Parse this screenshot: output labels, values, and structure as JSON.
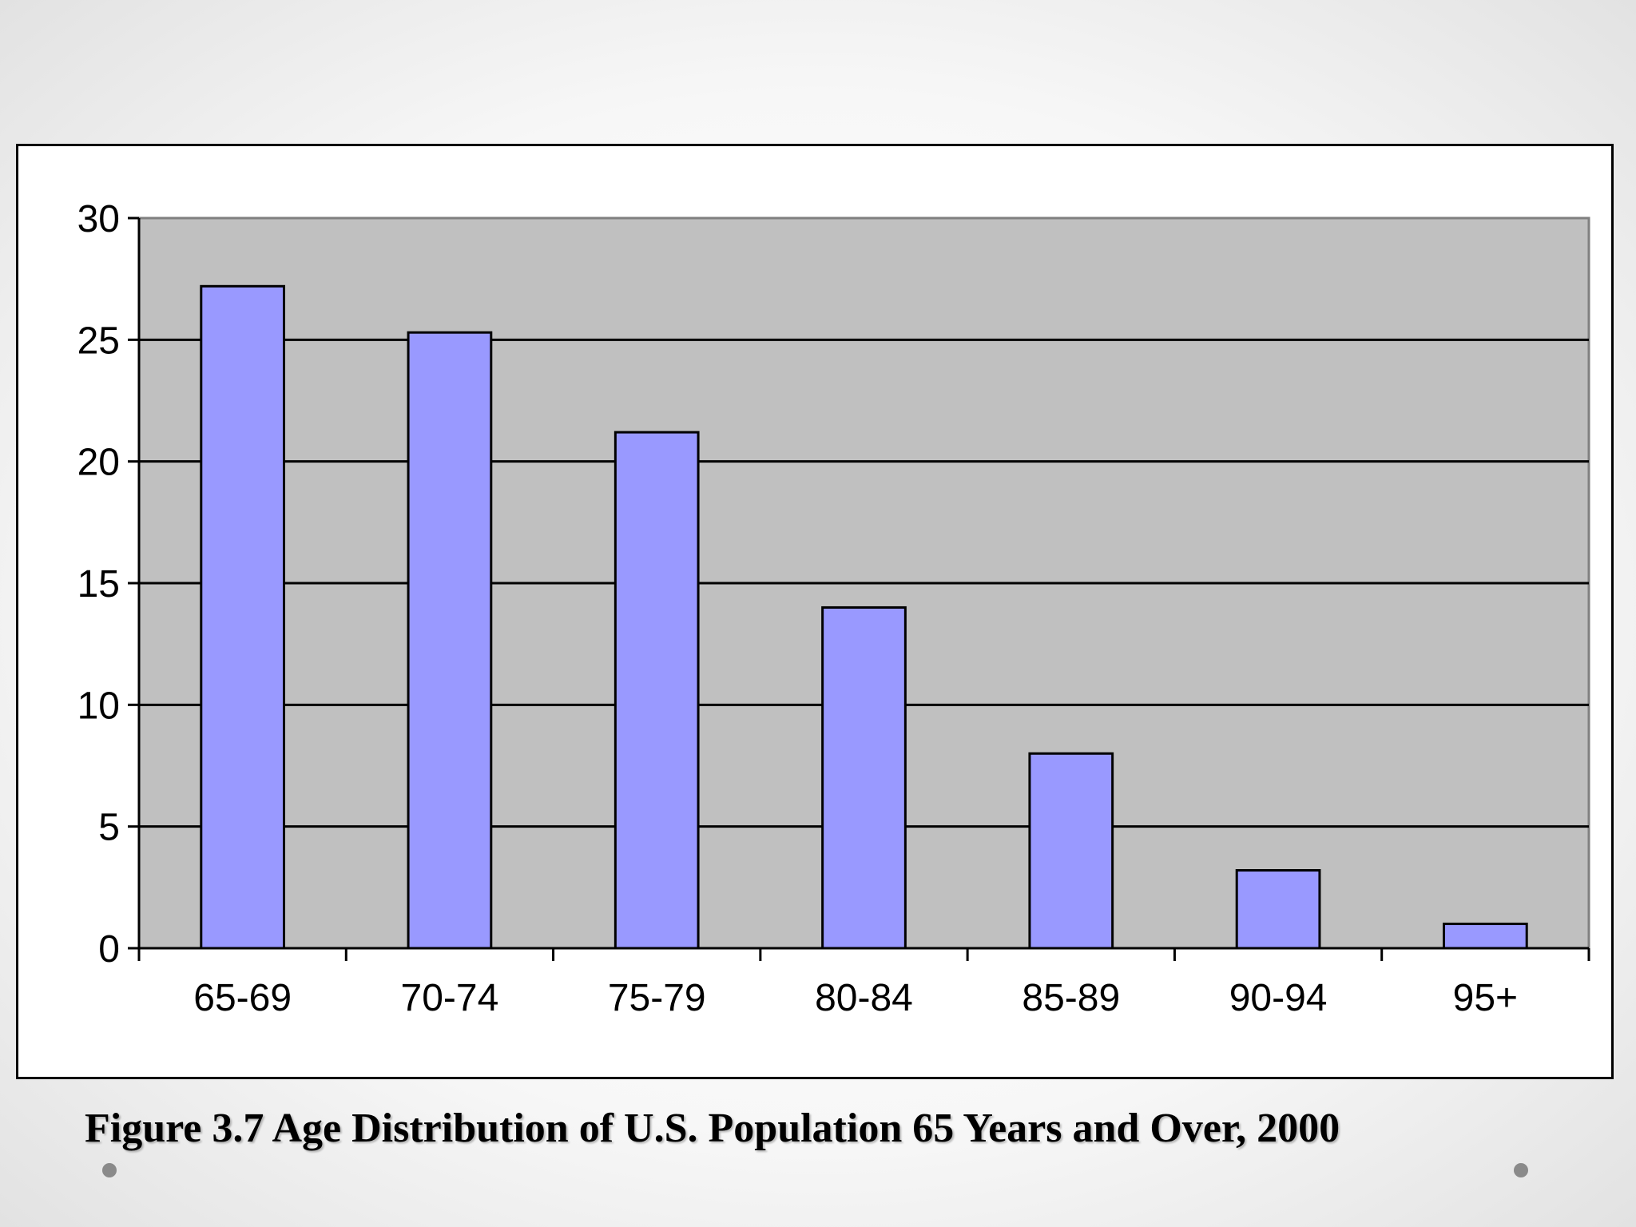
{
  "caption": "Figure 3.7 Age Distribution of U.S. Population 65 Years and Over, 2000",
  "colors": {
    "bar_fill": "#9999ff",
    "plot_background": "#c0c0c0",
    "gridline": "#000000",
    "slide_dot": "#8a8a8a"
  },
  "chart_data": {
    "type": "bar",
    "categories": [
      "65-69",
      "70-74",
      "75-79",
      "80-84",
      "85-89",
      "90-94",
      "95+"
    ],
    "values": [
      27.2,
      25.3,
      21.2,
      14.0,
      8.0,
      3.2,
      1.0
    ],
    "y_ticks": [
      0,
      5,
      10,
      15,
      20,
      25,
      30
    ],
    "ylim": [
      0,
      30
    ],
    "title": "",
    "xlabel": "",
    "ylabel": "",
    "grid": true,
    "legend": "none"
  }
}
